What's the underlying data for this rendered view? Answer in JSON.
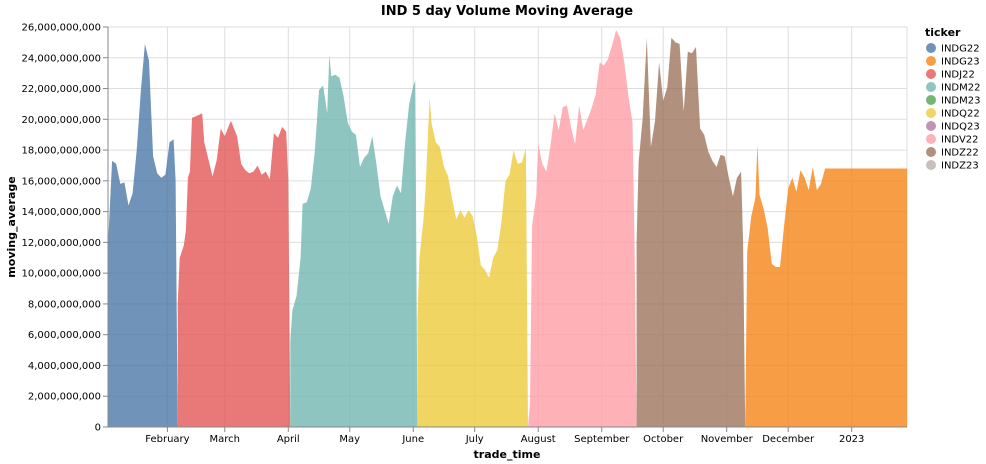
{
  "chart_data": {
    "type": "area",
    "title": "IND 5 day Volume Moving Average",
    "xlabel": "trade_time",
    "ylabel": "moving_average",
    "ylim": [
      0,
      26000000000
    ],
    "y_ticks": [
      0,
      2000000000,
      4000000000,
      6000000000,
      8000000000,
      10000000000,
      12000000000,
      14000000000,
      16000000000,
      18000000000,
      20000000000,
      22000000000,
      24000000000,
      26000000000
    ],
    "y_tick_labels": [
      "0",
      "2,000,000,000",
      "4,000,000,000",
      "6,000,000,000",
      "8,000,000,000",
      "10,000,000,000",
      "12,000,000,000",
      "14,000,000,000",
      "16,000,000,000",
      "18,000,000,000",
      "20,000,000,000",
      "22,000,000,000",
      "24,000,000,000",
      "26,000,000,000"
    ],
    "xlim": [
      "2022-01-03",
      "2023-01-28"
    ],
    "x_ticks": [
      "2022-02-01",
      "2022-03-01",
      "2022-04-01",
      "2022-05-01",
      "2022-06-01",
      "2022-07-01",
      "2022-08-01",
      "2022-09-01",
      "2022-10-01",
      "2022-11-01",
      "2022-12-01",
      "2023-01-01"
    ],
    "x_tick_labels": [
      "February",
      "March",
      "April",
      "May",
      "June",
      "July",
      "August",
      "September",
      "October",
      "November",
      "December",
      "2023"
    ],
    "grid": true,
    "legend": {
      "title": "ticker",
      "placement": "right",
      "entries": [
        {
          "name": "INDG22",
          "color": "#4c78a8"
        },
        {
          "name": "INDG23",
          "color": "#f58518"
        },
        {
          "name": "INDJ22",
          "color": "#e45756"
        },
        {
          "name": "INDM22",
          "color": "#72b7b2"
        },
        {
          "name": "INDM23",
          "color": "#54a24b"
        },
        {
          "name": "INDQ22",
          "color": "#eeca3b"
        },
        {
          "name": "INDQ23",
          "color": "#b279a2"
        },
        {
          "name": "INDV22",
          "color": "#ff9da6"
        },
        {
          "name": "INDZ22",
          "color": "#9d755d"
        },
        {
          "name": "INDZ23",
          "color": "#bab0ac"
        }
      ]
    },
    "series": [
      {
        "name": "INDG22",
        "color": "#4c78a8",
        "points": [
          [
            "2022-01-03",
            11800000000
          ],
          [
            "2022-01-04",
            14500000000
          ],
          [
            "2022-01-05",
            17300000000
          ],
          [
            "2022-01-07",
            17100000000
          ],
          [
            "2022-01-09",
            15800000000
          ],
          [
            "2022-01-11",
            15900000000
          ],
          [
            "2022-01-13",
            14400000000
          ],
          [
            "2022-01-15",
            15200000000
          ],
          [
            "2022-01-17",
            18000000000
          ],
          [
            "2022-01-19",
            21800000000
          ],
          [
            "2022-01-21",
            24900000000
          ],
          [
            "2022-01-23",
            23800000000
          ],
          [
            "2022-01-25",
            17600000000
          ],
          [
            "2022-01-27",
            16500000000
          ],
          [
            "2022-01-29",
            16200000000
          ],
          [
            "2022-01-31",
            16400000000
          ],
          [
            "2022-02-02",
            18500000000
          ],
          [
            "2022-02-04",
            18700000000
          ],
          [
            "2022-02-05",
            16000000000
          ],
          [
            "2022-02-06",
            0
          ]
        ]
      },
      {
        "name": "INDJ22",
        "color": "#e45756",
        "points": [
          [
            "2022-02-06",
            8000000000
          ],
          [
            "2022-02-07",
            11000000000
          ],
          [
            "2022-02-09",
            11800000000
          ],
          [
            "2022-02-10",
            12800000000
          ],
          [
            "2022-02-11",
            16200000000
          ],
          [
            "2022-02-12",
            16600000000
          ],
          [
            "2022-02-13",
            20100000000
          ],
          [
            "2022-02-15",
            20200000000
          ],
          [
            "2022-02-18",
            20400000000
          ],
          [
            "2022-02-19",
            18500000000
          ],
          [
            "2022-02-21",
            17400000000
          ],
          [
            "2022-02-23",
            16300000000
          ],
          [
            "2022-02-25",
            17300000000
          ],
          [
            "2022-02-27",
            19400000000
          ],
          [
            "2022-03-01",
            18900000000
          ],
          [
            "2022-03-03",
            19600000000
          ],
          [
            "2022-03-04",
            19900000000
          ],
          [
            "2022-03-07",
            18900000000
          ],
          [
            "2022-03-09",
            17100000000
          ],
          [
            "2022-03-11",
            16700000000
          ],
          [
            "2022-03-13",
            16500000000
          ],
          [
            "2022-03-15",
            16600000000
          ],
          [
            "2022-03-17",
            17000000000
          ],
          [
            "2022-03-19",
            16400000000
          ],
          [
            "2022-03-21",
            16600000000
          ],
          [
            "2022-03-23",
            16100000000
          ],
          [
            "2022-03-25",
            19100000000
          ],
          [
            "2022-03-27",
            18800000000
          ],
          [
            "2022-03-29",
            19500000000
          ],
          [
            "2022-03-31",
            19200000000
          ],
          [
            "2022-04-01",
            16000000000
          ],
          [
            "2022-04-02",
            0
          ]
        ]
      },
      {
        "name": "INDM22",
        "color": "#72b7b2",
        "points": [
          [
            "2022-04-02",
            5600000000
          ],
          [
            "2022-04-03",
            7600000000
          ],
          [
            "2022-04-05",
            8500000000
          ],
          [
            "2022-04-07",
            11000000000
          ],
          [
            "2022-04-08",
            14500000000
          ],
          [
            "2022-04-10",
            14600000000
          ],
          [
            "2022-04-12",
            15500000000
          ],
          [
            "2022-04-14",
            18000000000
          ],
          [
            "2022-04-16",
            21900000000
          ],
          [
            "2022-04-18",
            22200000000
          ],
          [
            "2022-04-20",
            20400000000
          ],
          [
            "2022-04-21",
            24200000000
          ],
          [
            "2022-04-22",
            22800000000
          ],
          [
            "2022-04-24",
            22900000000
          ],
          [
            "2022-04-26",
            22700000000
          ],
          [
            "2022-04-28",
            21500000000
          ],
          [
            "2022-04-30",
            19800000000
          ],
          [
            "2022-05-02",
            19200000000
          ],
          [
            "2022-05-04",
            19000000000
          ],
          [
            "2022-05-06",
            16900000000
          ],
          [
            "2022-05-08",
            17500000000
          ],
          [
            "2022-05-10",
            17800000000
          ],
          [
            "2022-05-12",
            18900000000
          ],
          [
            "2022-05-14",
            17100000000
          ],
          [
            "2022-05-16",
            15000000000
          ],
          [
            "2022-05-18",
            14100000000
          ],
          [
            "2022-05-20",
            13200000000
          ],
          [
            "2022-05-22",
            15000000000
          ],
          [
            "2022-05-24",
            15700000000
          ],
          [
            "2022-05-26",
            15200000000
          ],
          [
            "2022-05-28",
            18500000000
          ],
          [
            "2022-05-30",
            21000000000
          ],
          [
            "2022-06-01",
            22200000000
          ],
          [
            "2022-06-02",
            22500000000
          ],
          [
            "2022-06-03",
            0
          ]
        ]
      },
      {
        "name": "INDQ22",
        "color": "#eeca3b",
        "points": [
          [
            "2022-06-03",
            7000000000
          ],
          [
            "2022-06-04",
            11000000000
          ],
          [
            "2022-06-06",
            13500000000
          ],
          [
            "2022-06-07",
            15500000000
          ],
          [
            "2022-06-09",
            21400000000
          ],
          [
            "2022-06-10",
            19700000000
          ],
          [
            "2022-06-12",
            18500000000
          ],
          [
            "2022-06-14",
            18200000000
          ],
          [
            "2022-06-16",
            16900000000
          ],
          [
            "2022-06-18",
            16300000000
          ],
          [
            "2022-06-20",
            14800000000
          ],
          [
            "2022-06-22",
            13500000000
          ],
          [
            "2022-06-24",
            14100000000
          ],
          [
            "2022-06-26",
            13600000000
          ],
          [
            "2022-06-28",
            14100000000
          ],
          [
            "2022-06-30",
            13700000000
          ],
          [
            "2022-07-02",
            12400000000
          ],
          [
            "2022-07-04",
            10500000000
          ],
          [
            "2022-07-06",
            10200000000
          ],
          [
            "2022-07-08",
            9700000000
          ],
          [
            "2022-07-10",
            11000000000
          ],
          [
            "2022-07-12",
            11500000000
          ],
          [
            "2022-07-14",
            13300000000
          ],
          [
            "2022-07-16",
            16000000000
          ],
          [
            "2022-07-18",
            16400000000
          ],
          [
            "2022-07-20",
            18000000000
          ],
          [
            "2022-07-22",
            17100000000
          ],
          [
            "2022-07-24",
            17200000000
          ],
          [
            "2022-07-26",
            18100000000
          ],
          [
            "2022-07-27",
            0
          ]
        ]
      },
      {
        "name": "INDV22",
        "color": "#ff9da6",
        "points": [
          [
            "2022-07-27",
            0
          ],
          [
            "2022-07-28",
            1500000000
          ],
          [
            "2022-07-29",
            13100000000
          ],
          [
            "2022-07-31",
            15000000000
          ],
          [
            "2022-08-01",
            18400000000
          ],
          [
            "2022-08-03",
            17100000000
          ],
          [
            "2022-08-05",
            16600000000
          ],
          [
            "2022-08-07",
            18300000000
          ],
          [
            "2022-08-09",
            20400000000
          ],
          [
            "2022-08-11",
            19300000000
          ],
          [
            "2022-08-13",
            20800000000
          ],
          [
            "2022-08-15",
            20900000000
          ],
          [
            "2022-08-17",
            19500000000
          ],
          [
            "2022-08-19",
            18400000000
          ],
          [
            "2022-08-21",
            20900000000
          ],
          [
            "2022-08-23",
            19300000000
          ],
          [
            "2022-08-25",
            20000000000
          ],
          [
            "2022-08-27",
            20700000000
          ],
          [
            "2022-08-29",
            21600000000
          ],
          [
            "2022-08-31",
            23700000000
          ],
          [
            "2022-09-02",
            23500000000
          ],
          [
            "2022-09-04",
            23900000000
          ],
          [
            "2022-09-06",
            24800000000
          ],
          [
            "2022-09-08",
            25800000000
          ],
          [
            "2022-09-10",
            25300000000
          ],
          [
            "2022-09-12",
            23700000000
          ],
          [
            "2022-09-14",
            21500000000
          ],
          [
            "2022-09-16",
            19800000000
          ],
          [
            "2022-09-17",
            12000000000
          ],
          [
            "2022-09-18",
            0
          ]
        ]
      },
      {
        "name": "INDZ22",
        "color": "#9d755d",
        "points": [
          [
            "2022-09-18",
            12000000000
          ],
          [
            "2022-09-19",
            17200000000
          ],
          [
            "2022-09-21",
            20100000000
          ],
          [
            "2022-09-23",
            25300000000
          ],
          [
            "2022-09-25",
            18200000000
          ],
          [
            "2022-09-27",
            19900000000
          ],
          [
            "2022-09-29",
            23700000000
          ],
          [
            "2022-10-01",
            21200000000
          ],
          [
            "2022-10-03",
            22100000000
          ],
          [
            "2022-10-05",
            25300000000
          ],
          [
            "2022-10-07",
            25000000000
          ],
          [
            "2022-10-09",
            24900000000
          ],
          [
            "2022-10-11",
            20500000000
          ],
          [
            "2022-10-13",
            24400000000
          ],
          [
            "2022-10-15",
            24300000000
          ],
          [
            "2022-10-17",
            24700000000
          ],
          [
            "2022-10-19",
            19400000000
          ],
          [
            "2022-10-21",
            19000000000
          ],
          [
            "2022-10-23",
            17900000000
          ],
          [
            "2022-10-25",
            17300000000
          ],
          [
            "2022-10-27",
            16900000000
          ],
          [
            "2022-10-29",
            17700000000
          ],
          [
            "2022-10-31",
            17600000000
          ],
          [
            "2022-11-02",
            16200000000
          ],
          [
            "2022-11-04",
            15000000000
          ],
          [
            "2022-11-06",
            16200000000
          ],
          [
            "2022-11-08",
            16600000000
          ],
          [
            "2022-11-09",
            12000000000
          ],
          [
            "2022-11-10",
            0
          ]
        ]
      },
      {
        "name": "INDG23",
        "color": "#f58518",
        "points": [
          [
            "2022-11-10",
            0
          ],
          [
            "2022-11-11",
            11400000000
          ],
          [
            "2022-11-13",
            13700000000
          ],
          [
            "2022-11-15",
            14900000000
          ],
          [
            "2022-11-16",
            18400000000
          ],
          [
            "2022-11-17",
            15100000000
          ],
          [
            "2022-11-19",
            14200000000
          ],
          [
            "2022-11-21",
            12900000000
          ],
          [
            "2022-11-23",
            10600000000
          ],
          [
            "2022-11-25",
            10400000000
          ],
          [
            "2022-11-27",
            10400000000
          ],
          [
            "2022-11-29",
            13100000000
          ],
          [
            "2022-12-01",
            15500000000
          ],
          [
            "2022-12-03",
            16200000000
          ],
          [
            "2022-12-05",
            15300000000
          ],
          [
            "2022-12-07",
            16700000000
          ],
          [
            "2022-12-09",
            16200000000
          ],
          [
            "2022-12-11",
            15400000000
          ],
          [
            "2022-12-13",
            16900000000
          ],
          [
            "2022-12-15",
            15400000000
          ],
          [
            "2022-12-17",
            15800000000
          ],
          [
            "2022-12-19",
            16800000000
          ],
          [
            "2023-01-28",
            16800000000
          ]
        ]
      }
    ]
  }
}
